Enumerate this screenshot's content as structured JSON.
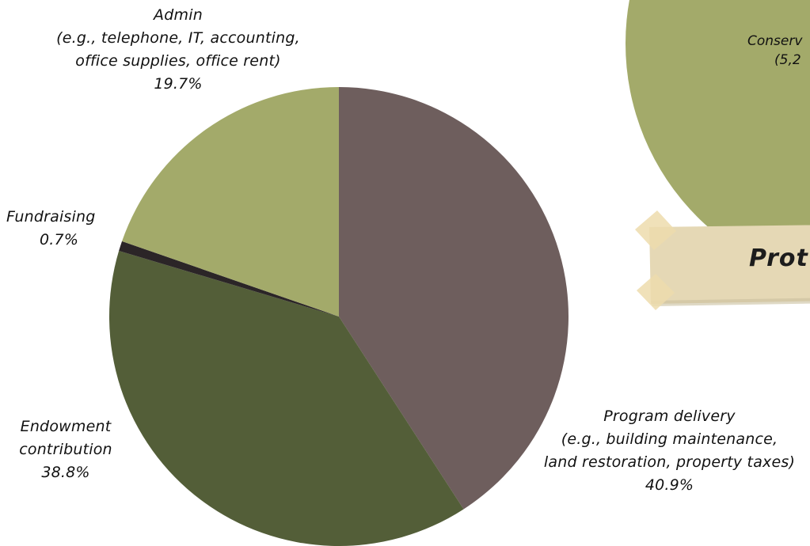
{
  "chart_data": {
    "type": "pie",
    "slices": [
      {
        "label": "Program delivery (e.g., building maintenance, land restoration, property taxes)",
        "value": 40.9,
        "color": "#6e5e5d"
      },
      {
        "label": "Endowment contribution",
        "value": 38.8,
        "color": "#535e38"
      },
      {
        "label": "Fundraising",
        "value": 0.7,
        "color": "#2b2527"
      },
      {
        "label": "Admin (e.g., telephone, IT, accounting, office supplies, office rent)",
        "value": 19.7,
        "color": "#a3aa6a"
      }
    ],
    "start_angle_deg": 0,
    "direction": "clockwise"
  },
  "labels": {
    "admin": {
      "title": "Admin",
      "detail1": "(e.g., telephone, IT, accounting,",
      "detail2": "office supplies, office rent)",
      "pct": "19.7%"
    },
    "fundraising": {
      "title": "Fundraising",
      "pct": "0.7%"
    },
    "endowment": {
      "title1": "Endowment",
      "title2": "contribution",
      "pct": "38.8%"
    },
    "program": {
      "title": "Program delivery",
      "detail1": "(e.g., building maintenance,",
      "detail2": "land restoration, property taxes)",
      "pct": "40.9%"
    }
  },
  "side_elements": {
    "conservation_circle_color": "#a3aa6a",
    "conservation_label_line1": "Conserv",
    "conservation_label_line2": "(5,2",
    "banner_text": "Prot",
    "tape_color": "#eddcad",
    "banner_color": "#e5d8b5"
  }
}
